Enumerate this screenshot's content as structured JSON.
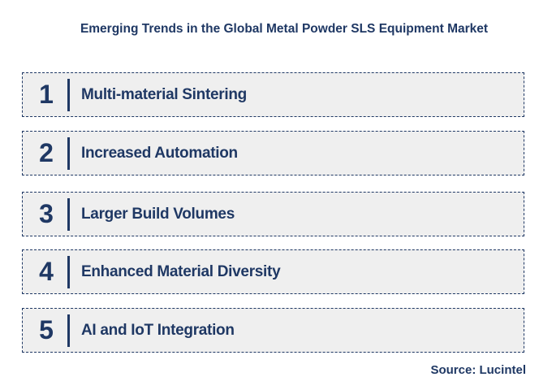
{
  "title": "Emerging Trends in the Global Metal Powder SLS Equipment Market",
  "items": [
    {
      "number": "1",
      "label": "Multi-material Sintering"
    },
    {
      "number": "2",
      "label": "Increased Automation"
    },
    {
      "number": "3",
      "label": "Larger Build Volumes"
    },
    {
      "number": "4",
      "label": "Enhanced Material Diversity"
    },
    {
      "number": "5",
      "label": "AI and IoT Integration"
    }
  ],
  "source": "Source: Lucintel",
  "colors": {
    "accent": "#1f3864",
    "box": "#efefef"
  }
}
